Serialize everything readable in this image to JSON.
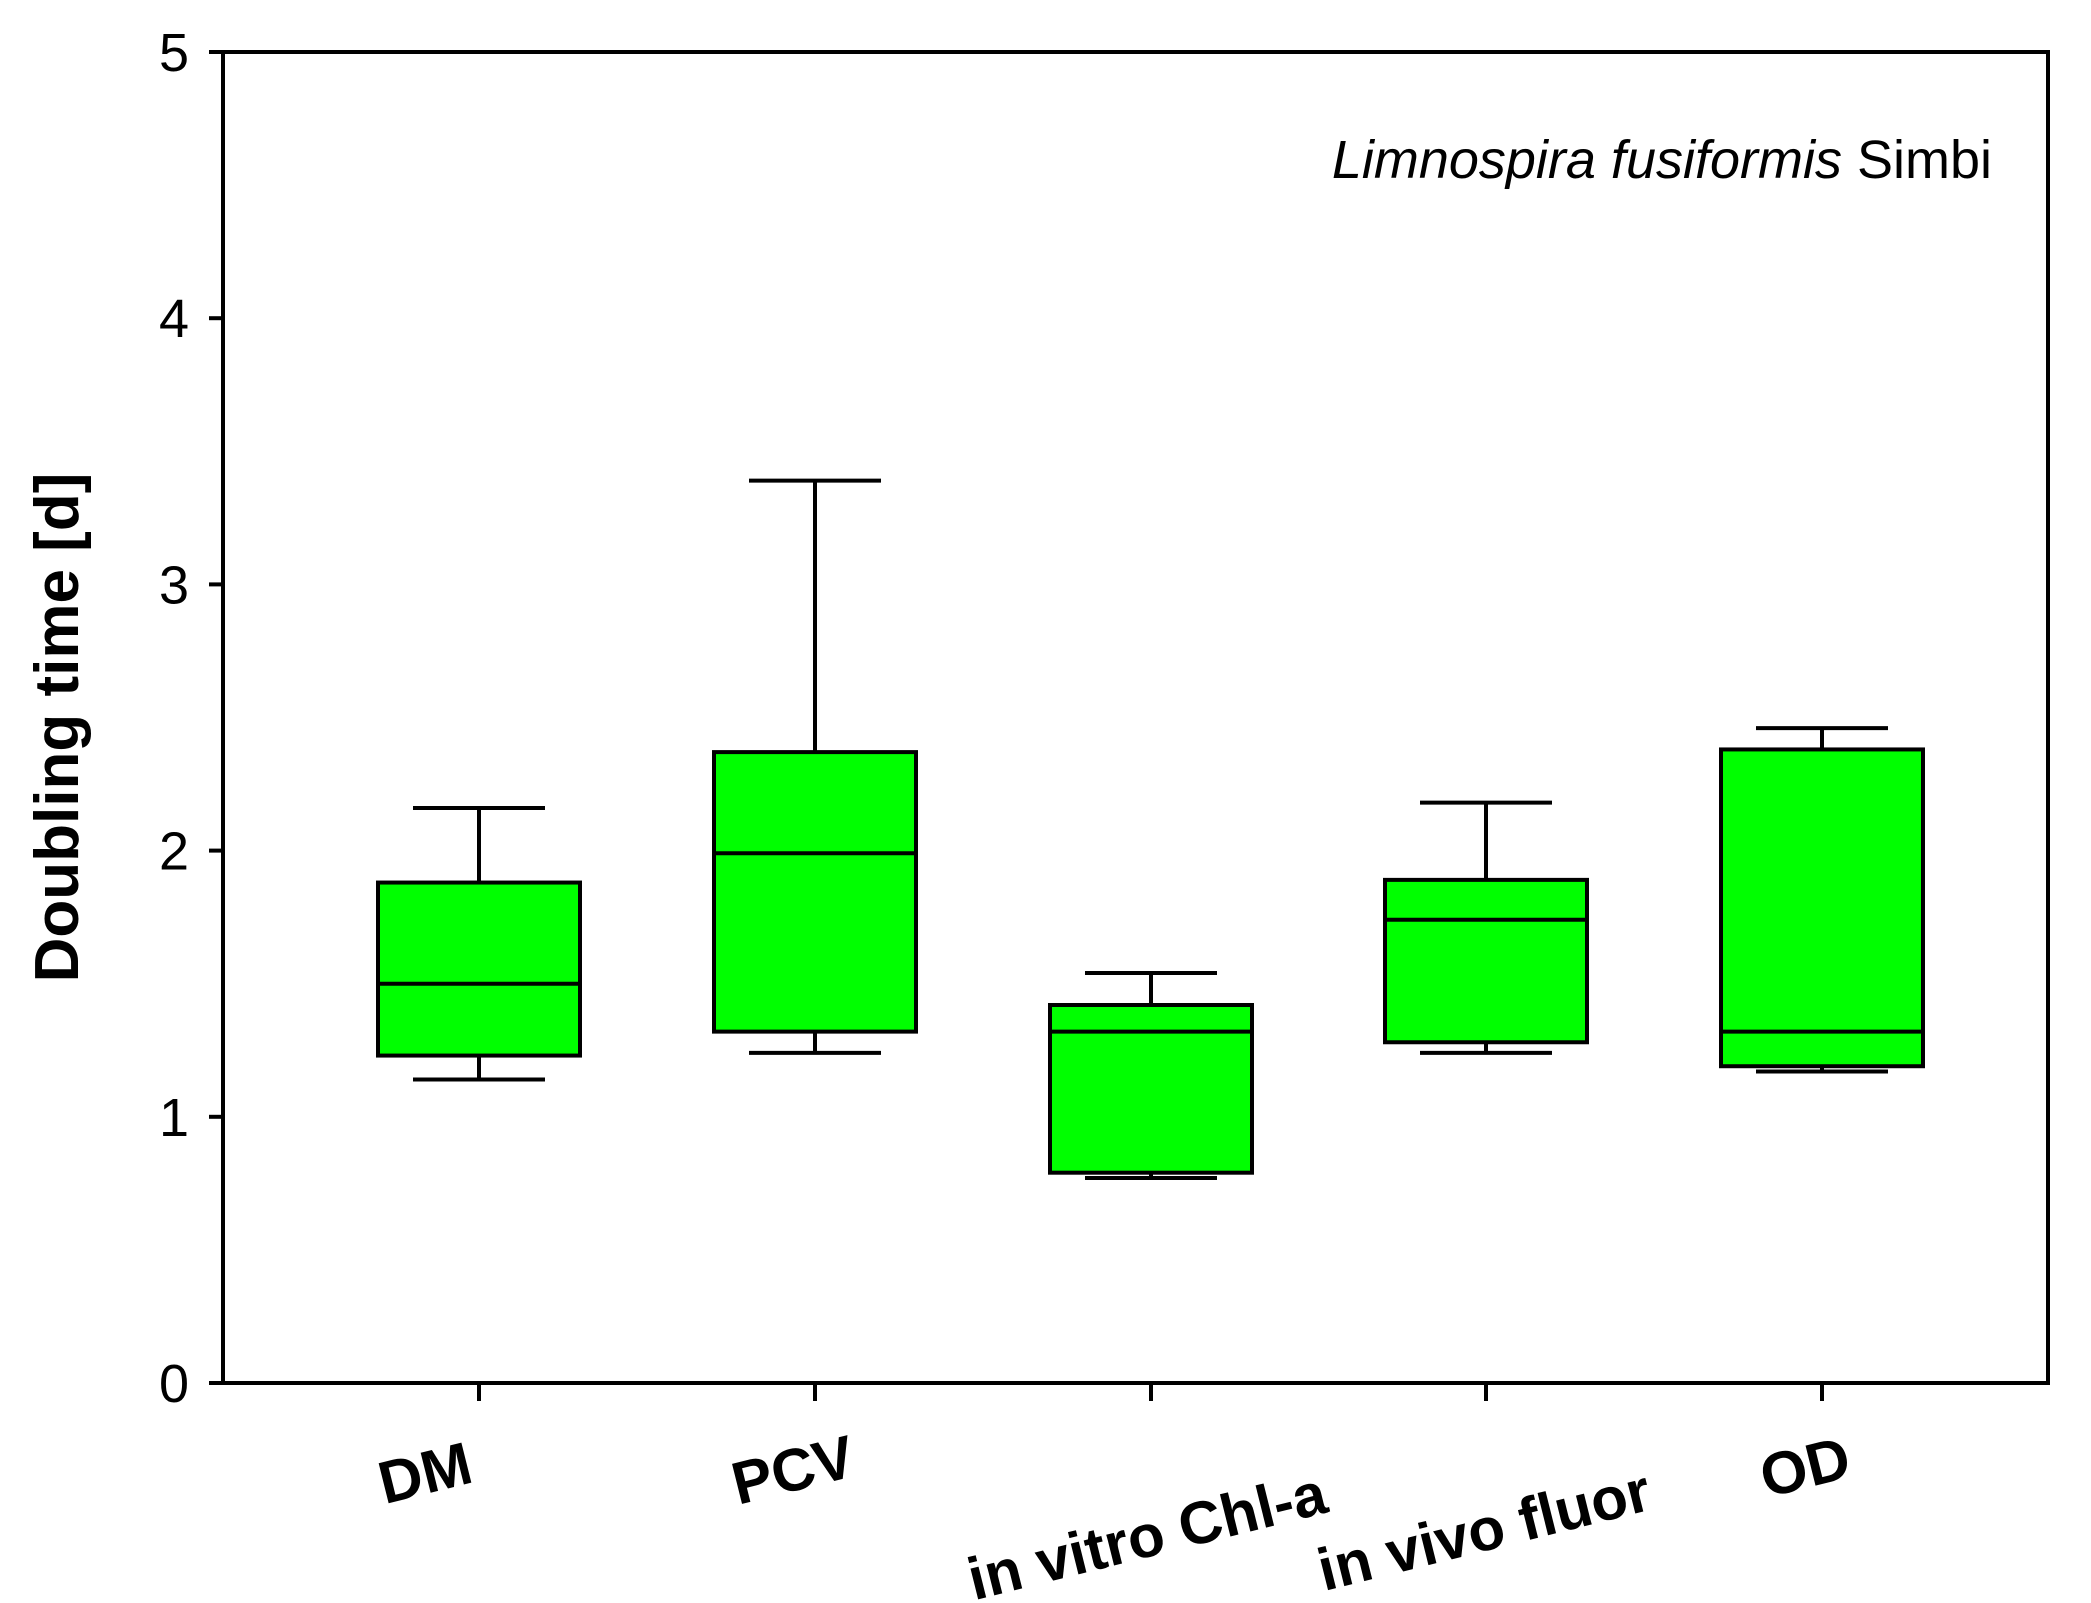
{
  "chart_data": {
    "type": "box",
    "title": "",
    "annotation": {
      "italic": "Limnospira fusiformis",
      "normal": " Simbi"
    },
    "xlabel": "",
    "ylabel": "Doubling time [d]",
    "ylim": [
      0,
      5
    ],
    "yticks": [
      0,
      1,
      2,
      3,
      4,
      5
    ],
    "box_color": "#00ff00",
    "categories": [
      "DM",
      "PCV",
      "in vitro Chl-a",
      "in vivo fluor",
      "OD"
    ],
    "boxes": [
      {
        "name": "DM",
        "whisker_low": 1.14,
        "q1": 1.23,
        "median": 1.5,
        "q3": 1.88,
        "whisker_high": 2.16
      },
      {
        "name": "PCV",
        "whisker_low": 1.24,
        "q1": 1.32,
        "median": 1.99,
        "q3": 2.37,
        "whisker_high": 3.39
      },
      {
        "name": "in vitro Chl-a",
        "whisker_low": 0.77,
        "q1": 0.79,
        "median": 1.32,
        "q3": 1.42,
        "whisker_high": 1.54
      },
      {
        "name": "in vivo fluor",
        "whisker_low": 1.24,
        "q1": 1.28,
        "median": 1.74,
        "q3": 1.89,
        "whisker_high": 2.18
      },
      {
        "name": "OD",
        "whisker_low": 1.17,
        "q1": 1.19,
        "median": 1.32,
        "q3": 2.38,
        "whisker_high": 2.46
      }
    ]
  }
}
